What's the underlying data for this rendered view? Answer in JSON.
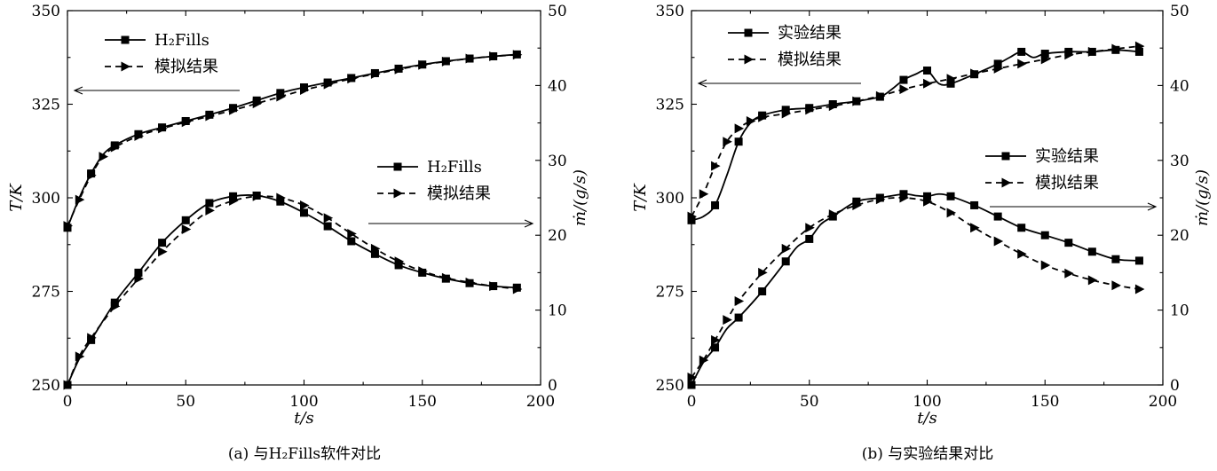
{
  "chart_data": [
    {
      "type": "line",
      "caption": "(a) 与H₂Fills软件对比",
      "xlabel": "t/s",
      "ylabel_left": "T/K",
      "ylabel_right": "ṁ/(g/s)",
      "xlim": [
        0,
        200
      ],
      "ylim_left": [
        250,
        350
      ],
      "ylim_right": [
        0,
        50
      ],
      "xticks": [
        0,
        50,
        100,
        150,
        200
      ],
      "yticks_left": [
        250,
        275,
        300,
        325,
        350
      ],
      "yticks_right": [
        0,
        10,
        20,
        30,
        40,
        50
      ],
      "legends": [
        {
          "position": "top-left",
          "axis": "left",
          "entries": [
            "H₂Fills",
            "模拟结果"
          ]
        },
        {
          "position": "center-right",
          "axis": "right",
          "entries": [
            "H₂Fills",
            "模拟结果"
          ]
        }
      ],
      "series": [
        {
          "name": "H₂Fills",
          "axis": "left",
          "style": "solid",
          "marker": "square",
          "x": [
            0,
            5,
            10,
            15,
            20,
            30,
            40,
            50,
            60,
            70,
            80,
            90,
            100,
            110,
            120,
            130,
            140,
            150,
            160,
            170,
            180,
            190
          ],
          "y": [
            292,
            300,
            306.5,
            311.5,
            314,
            317,
            318.8,
            320.5,
            322.2,
            324,
            326,
            328,
            329.5,
            330.8,
            332,
            333.3,
            334.5,
            335.6,
            336.5,
            337.2,
            337.8,
            338.3
          ]
        },
        {
          "name": "模拟结果",
          "axis": "left",
          "style": "dashed",
          "marker": "triangle",
          "x": [
            0,
            5,
            10,
            15,
            20,
            30,
            40,
            50,
            60,
            70,
            80,
            90,
            100,
            110,
            120,
            130,
            140,
            150,
            160,
            170,
            180,
            190
          ],
          "y": [
            292.5,
            299.5,
            306,
            311,
            313.5,
            316.5,
            318.5,
            320.2,
            321.8,
            323.4,
            325.2,
            327,
            328.8,
            330.3,
            331.8,
            333.1,
            334.3,
            335.5,
            336.4,
            337.2,
            337.8,
            338.2
          ]
        },
        {
          "name": "H₂Fills",
          "axis": "right",
          "style": "solid",
          "marker": "square",
          "x": [
            0,
            5,
            10,
            20,
            30,
            40,
            50,
            60,
            70,
            80,
            90,
            100,
            110,
            120,
            130,
            140,
            150,
            160,
            170,
            180,
            190
          ],
          "y": [
            0,
            3.5,
            6,
            11,
            15,
            19,
            22,
            24.3,
            25.2,
            25.3,
            24.5,
            23,
            21.2,
            19.2,
            17.5,
            16,
            15,
            14.2,
            13.6,
            13.2,
            13
          ]
        },
        {
          "name": "模拟结果",
          "axis": "right",
          "style": "dashed",
          "marker": "triangle",
          "x": [
            0,
            5,
            10,
            20,
            30,
            40,
            50,
            60,
            70,
            80,
            90,
            100,
            110,
            120,
            130,
            140,
            150,
            160,
            170,
            180,
            190
          ],
          "y": [
            0,
            3.8,
            6.3,
            10.5,
            14.2,
            17.8,
            20.8,
            23.3,
            24.6,
            25.2,
            25,
            24,
            22.3,
            20.2,
            18.2,
            16.5,
            15.2,
            14.3,
            13.7,
            13.2,
            12.8
          ]
        }
      ]
    },
    {
      "type": "line",
      "caption": "(b) 与实验结果对比",
      "xlabel": "t/s",
      "ylabel_left": "T/K",
      "ylabel_right": "ṁ/(g/s)",
      "xlim": [
        0,
        200
      ],
      "ylim_left": [
        250,
        350
      ],
      "ylim_right": [
        0,
        50
      ],
      "xticks": [
        0,
        50,
        100,
        150,
        200
      ],
      "yticks_left": [
        250,
        275,
        300,
        325,
        350
      ],
      "yticks_right": [
        0,
        10,
        20,
        30,
        40,
        50
      ],
      "legends": [
        {
          "position": "top-left",
          "axis": "left",
          "entries": [
            "实验结果",
            "模拟结果"
          ]
        },
        {
          "position": "center-right",
          "axis": "right",
          "entries": [
            "实验结果",
            "模拟结果"
          ]
        }
      ],
      "series": [
        {
          "name": "实验结果",
          "axis": "left",
          "style": "solid",
          "marker": "square",
          "x": [
            0,
            5,
            10,
            15,
            20,
            25,
            30,
            40,
            50,
            60,
            70,
            80,
            85,
            90,
            95,
            100,
            105,
            110,
            120,
            130,
            135,
            140,
            145,
            150,
            160,
            170,
            180,
            190
          ],
          "y": [
            294,
            295,
            298,
            306,
            315,
            320,
            322,
            323.5,
            324,
            325,
            325.8,
            327,
            329,
            331.5,
            333,
            334,
            330.5,
            330.5,
            333,
            335.8,
            337.5,
            339,
            337.5,
            338.5,
            339,
            339,
            339.5,
            339
          ]
        },
        {
          "name": "模拟结果",
          "axis": "left",
          "style": "dashed",
          "marker": "triangle",
          "x": [
            0,
            5,
            10,
            15,
            20,
            25,
            30,
            40,
            50,
            60,
            70,
            80,
            90,
            100,
            110,
            120,
            130,
            140,
            150,
            160,
            170,
            180,
            190
          ],
          "y": [
            295,
            301,
            308.5,
            315,
            318.5,
            320.5,
            321.5,
            322.5,
            323.5,
            324.5,
            325.8,
            327.2,
            329,
            330.5,
            331.8,
            333.2,
            334.5,
            335.8,
            337,
            338.2,
            339,
            339.8,
            340.5
          ]
        },
        {
          "name": "实验结果",
          "axis": "right",
          "style": "solid",
          "marker": "square",
          "x": [
            0,
            5,
            10,
            15,
            20,
            30,
            40,
            45,
            50,
            55,
            60,
            70,
            80,
            90,
            95,
            100,
            105,
            110,
            120,
            130,
            140,
            150,
            160,
            170,
            180,
            190
          ],
          "y": [
            0,
            3,
            5,
            7.5,
            9,
            12.5,
            16.5,
            18.5,
            19.5,
            21.5,
            22.5,
            24.5,
            25,
            25.5,
            25.3,
            25.2,
            25.5,
            25.2,
            24,
            22.5,
            21,
            20,
            19,
            17.8,
            16.8,
            16.6
          ]
        },
        {
          "name": "模拟结果",
          "axis": "right",
          "style": "dashed",
          "marker": "triangle",
          "x": [
            0,
            5,
            10,
            15,
            20,
            30,
            40,
            50,
            60,
            70,
            80,
            90,
            100,
            110,
            120,
            130,
            140,
            150,
            160,
            170,
            180,
            190
          ],
          "y": [
            1,
            3.3,
            6,
            8.7,
            11.2,
            15,
            18.2,
            21,
            22.8,
            24,
            24.8,
            25,
            24.5,
            23,
            21,
            19.2,
            17.5,
            16,
            14.9,
            14,
            13.3,
            12.8
          ]
        }
      ]
    }
  ]
}
